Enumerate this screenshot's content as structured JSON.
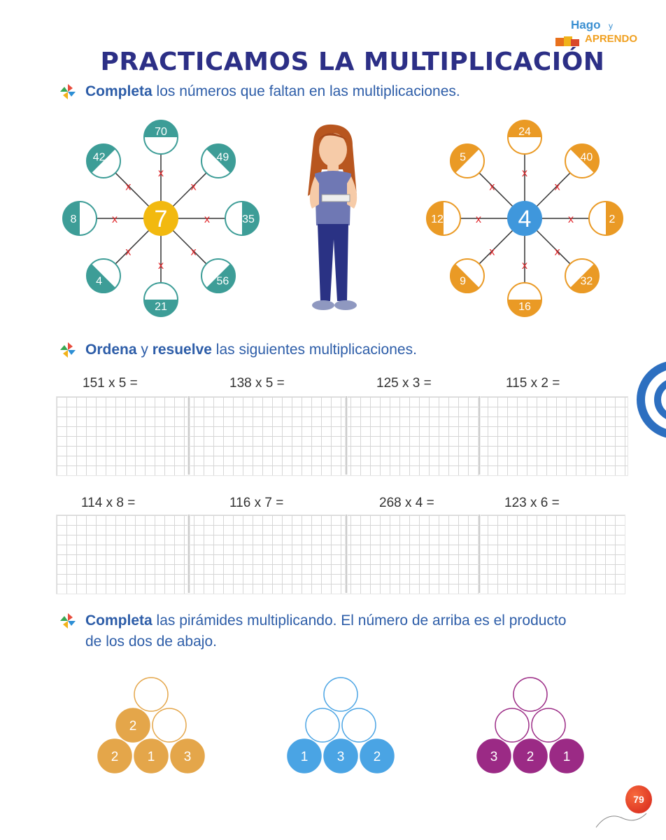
{
  "header": {
    "title": "PRACTICAMOS LA MULTIPLICACIÓN",
    "logo_line1": "Hago",
    "logo_y": "y",
    "logo_line2": "APRENDO"
  },
  "instructions": [
    {
      "bold": "Completa",
      "rest": " los números que faltan en las multiplicaciones."
    },
    {
      "bold": "Ordena",
      "mid": " y ",
      "bold2": "resuelve",
      "rest": " las siguientes multiplicaciones."
    },
    {
      "bold": "Completa",
      "rest": " las pirámides multiplicando. El número de arriba es el producto",
      "line2": "de los dos de abajo."
    }
  ],
  "wheels": [
    {
      "center": "7",
      "times": "x",
      "color": "#3d9d97",
      "center_color": "#f2b90f",
      "spokes": [
        "70",
        "49",
        "35",
        "56",
        "21",
        "4",
        "8",
        "42"
      ]
    },
    {
      "center": "4",
      "times": "x",
      "color": "#ea9a25",
      "center_color": "#3f97dc",
      "spokes": [
        "24",
        "40",
        "2",
        "32",
        "16",
        "9",
        "12",
        "5"
      ]
    }
  ],
  "operations_row1": [
    "151 x 5 =",
    "138 x 5 =",
    "125 x 3 =",
    "115 x 2 ="
  ],
  "operations_row2": [
    "114 x 8 =",
    "116 x 7 =",
    "268 x 4 =",
    "123 x 6 ="
  ],
  "pyramids": [
    {
      "color": "#e4a64a",
      "top": "",
      "middle": [
        "2",
        ""
      ],
      "bottom": [
        "2",
        "1",
        "3"
      ]
    },
    {
      "color": "#4aa4e4",
      "top": "",
      "middle": [
        "",
        ""
      ],
      "bottom": [
        "1",
        "3",
        "2"
      ]
    },
    {
      "color": "#9b2a85",
      "top": "",
      "middle": [
        "",
        ""
      ],
      "bottom": [
        "3",
        "2",
        "1"
      ]
    }
  ],
  "page_number": "79"
}
